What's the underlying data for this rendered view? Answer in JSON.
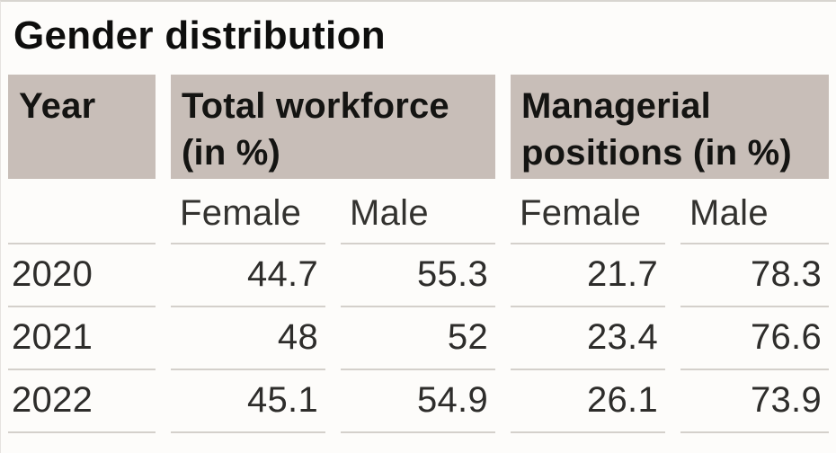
{
  "title": "Gender distribution",
  "header": {
    "year": "Year",
    "total_workforce": "Total workforce (in %)",
    "managerial": "Managerial positions (in %)"
  },
  "subheader": {
    "labels": [
      "Female",
      "Male",
      "Female",
      "Male"
    ]
  },
  "table": {
    "rows": [
      {
        "year": "2020",
        "values": [
          "44.7",
          "55.3",
          "21.7",
          "78.3"
        ]
      },
      {
        "year": "2021",
        "values": [
          "48",
          "52",
          "23.4",
          "76.6"
        ]
      },
      {
        "year": "2022",
        "values": [
          "45.1",
          "54.9",
          "26.1",
          "73.9"
        ]
      }
    ]
  },
  "colors": {
    "header_background": "#c8beb8",
    "page_background": "#fdfcfa",
    "row_border": "#d4d0cb",
    "text": "#141412"
  },
  "chart_data": {
    "type": "table",
    "title": "Gender distribution",
    "column_groups": [
      "Year",
      "Total workforce (in %)",
      "Managerial positions (in %)"
    ],
    "columns": [
      "Year",
      "Total workforce Female (%)",
      "Total workforce Male (%)",
      "Managerial positions Female (%)",
      "Managerial positions Male (%)"
    ],
    "rows": [
      [
        "2020",
        44.7,
        55.3,
        21.7,
        78.3
      ],
      [
        "2021",
        48,
        52,
        23.4,
        76.6
      ],
      [
        "2022",
        45.1,
        54.9,
        26.1,
        73.9
      ]
    ]
  }
}
